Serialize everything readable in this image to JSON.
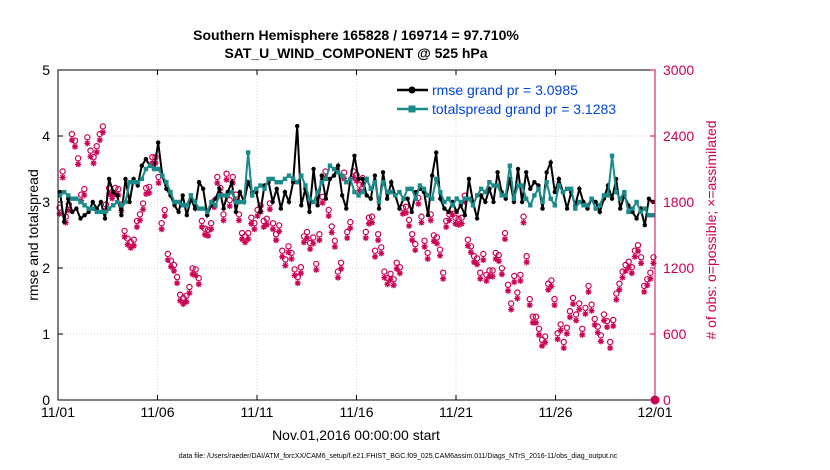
{
  "chart_data": {
    "type": "line",
    "title": "Southern Hemisphere 165828 / 169714 = 97.710%",
    "subtitle": "SAT_U_WIND_COMPONENT @ 525 hPa",
    "xlabel": "Nov.01,2016 00:00:00 start",
    "ylabel": "rmse and totalspread",
    "ylabel_right": "# of obs: o=possible; ×=assimilated",
    "xlim": [
      0,
      30
    ],
    "ylim": [
      0,
      5
    ],
    "ylim_right": [
      0,
      3000
    ],
    "x_tick_labels": [
      "11/01",
      "11/06",
      "11/11",
      "11/16",
      "11/21",
      "11/26",
      "12/01"
    ],
    "x_tick_values": [
      0,
      5,
      10,
      15,
      20,
      25,
      30
    ],
    "y_tick_labels": [
      "0",
      "1",
      "2",
      "3",
      "4",
      "5"
    ],
    "y_right_tick_labels": [
      "0",
      "600",
      "1200",
      "1800",
      "2400",
      "3000"
    ],
    "grid": true,
    "legend_position": "top-right",
    "legend": [
      "rmse grand pr = 3.0985",
      "totalspread grand pr = 3.1283"
    ],
    "footer": "data file: /Users/raeder/DAI/ATM_forcXX/CAM6_setup/f.e21.FHIST_BGC.f09_025.CAM6assim.011/Diags_NTrS_2016-11/obs_diag_output.nc",
    "series": [
      {
        "name": "rmse",
        "color": "#000000",
        "values": [
          3.15,
          2.7,
          3.05,
          2.85,
          2.9,
          2.75,
          2.8,
          2.85,
          3.0,
          2.9,
          3.0,
          2.75,
          3.35,
          3.15,
          3.1,
          2.8,
          3.35,
          3.0,
          3.35,
          3.25,
          3.55,
          3.65,
          3.55,
          3.5,
          3.9,
          3.4,
          3.2,
          3.1,
          2.95,
          2.85,
          3.1,
          2.8,
          3.05,
          2.9,
          3.3,
          3.2,
          2.8,
          2.95,
          3.05,
          3.2,
          2.9,
          3.15,
          3.3,
          2.85,
          3.15,
          3.0,
          3.3,
          3.15,
          3.15,
          2.85,
          3.25,
          3.3,
          3.0,
          3.2,
          2.9,
          3.15,
          3.0,
          3.3,
          4.15,
          2.95,
          3.2,
          2.85,
          3.5,
          2.95,
          3.4,
          3.05,
          3.35,
          3.4,
          3.55,
          3.1,
          2.9,
          3.35,
          3.7,
          3.35,
          3.35,
          3.1,
          3.05,
          3.4,
          2.9,
          3.45,
          3.05,
          3.3,
          3.1,
          2.9,
          3.05,
          3.05,
          2.85,
          3.15,
          3.2,
          3.15,
          2.8,
          3.4,
          3.75,
          3.05,
          2.9,
          2.85,
          3.0,
          2.85,
          2.95,
          2.8,
          3.35,
          3.0,
          2.75,
          3.1,
          3.0,
          3.2,
          3.0,
          3.45,
          3.15,
          3.05,
          3.35,
          3.0,
          3.5,
          3.0,
          3.45,
          3.2,
          3.3,
          3.25,
          2.9,
          3.45,
          3.6,
          3.15,
          3.35,
          3.15,
          2.9,
          3.15,
          2.95,
          3.2,
          3.0,
          2.9,
          3.05,
          3.0,
          2.85,
          3.05,
          3.25,
          3.05,
          3.35,
          2.9,
          3.1,
          2.95,
          2.85,
          2.75,
          2.9,
          2.65,
          3.05,
          3.0
        ]
      },
      {
        "name": "totalspread",
        "color": "#1a8a8a",
        "values": [
          3.1,
          3.15,
          3.1,
          3.05,
          3.05,
          3.0,
          2.95,
          2.9,
          2.9,
          2.85,
          2.85,
          2.85,
          2.9,
          2.95,
          3.0,
          2.95,
          3.0,
          3.3,
          3.3,
          3.3,
          3.35,
          3.5,
          3.55,
          3.5,
          3.5,
          3.4,
          3.3,
          3.15,
          3.0,
          3.0,
          2.95,
          2.95,
          3.1,
          3.0,
          2.9,
          2.9,
          2.85,
          3.0,
          2.95,
          3.1,
          3.1,
          3.1,
          3.15,
          3.0,
          3.0,
          3.0,
          3.75,
          3.1,
          3.2,
          3.25,
          3.2,
          3.35,
          3.35,
          3.3,
          3.3,
          3.35,
          3.4,
          3.35,
          3.3,
          3.4,
          3.25,
          3.05,
          3.0,
          3.15,
          3.3,
          3.35,
          3.55,
          3.5,
          3.45,
          3.4,
          3.3,
          3.35,
          3.15,
          3.1,
          3.15,
          3.35,
          3.2,
          3.3,
          3.0,
          3.3,
          3.15,
          3.15,
          3.1,
          3.15,
          3.05,
          3.2,
          3.2,
          3.05,
          3.25,
          3.2,
          3.1,
          3.05,
          3.35,
          3.15,
          3.0,
          3.05,
          2.95,
          3.05,
          3.0,
          3.05,
          3.05,
          2.95,
          3.1,
          3.2,
          3.15,
          3.3,
          3.25,
          3.25,
          3.1,
          3.1,
          3.55,
          3.05,
          3.25,
          3.25,
          3.05,
          2.95,
          3.1,
          3.2,
          3.0,
          3.3,
          3.05,
          2.95,
          3.25,
          3.15,
          3.2,
          3.2,
          2.9,
          3.0,
          2.95,
          2.95,
          3.05,
          2.9,
          2.95,
          3.1,
          3.1,
          3.7,
          3.15,
          3.05,
          3.15,
          2.85,
          2.9,
          3.0,
          2.85,
          2.9,
          2.8,
          2.8
        ]
      }
    ],
    "obs_possible": [
      1720,
      2050,
      1640,
      1750,
      2390,
      2330,
      2170,
      1840,
      1890,
      2360,
      2240,
      2180,
      2280,
      2390,
      2460,
      1750,
      1900,
      1860,
      1900,
      1890,
      1750,
      1510,
      1440,
      1410,
      1430,
      1600,
      1660,
      1760,
      1900,
      1910,
      2180,
      2180,
      2000,
      1580,
      1700,
      1300,
      1240,
      1200,
      1090,
      930,
      900,
      920,
      1000,
      1170,
      1160,
      1080,
      1600,
      1530,
      1520,
      1580,
      1780,
      2000,
      1900,
      1660,
      2030,
      1790,
      2000,
      1840,
      1660,
      1490,
      1460,
      1490,
      1630,
      1580,
      1700,
      1740,
      1600,
      1620,
      1760,
      1580,
      1480,
      1560,
      1330,
      1250,
      1370,
      1310,
      1160,
      1090,
      1180,
      1460,
      1500,
      1400,
      1450,
      1210,
      1480,
      1820,
      2050,
      1700,
      1550,
      1420,
      1140,
      1220,
      2040,
      1500,
      1590,
      2050,
      2020,
      1930,
      1990,
      1500,
      1630,
      1640,
      1330,
      1480,
      1360,
      1140,
      1080,
      1120,
      1070,
      1220,
      1180,
      1720,
      1730,
      1610,
      1480,
      1390,
      1810,
      1640,
      1420,
      1310,
      1660,
      1470,
      1450,
      1340,
      1130,
      1600,
      1660,
      1710,
      1630,
      1620,
      1630,
      1830,
      1430,
      1370,
      1280,
      1260,
      1130,
      1300,
      1110,
      1150,
      1150,
      1310,
      1290,
      1170,
      1490,
      1020,
      850,
      1100,
      950,
      1110,
      1640,
      1280,
      890,
      730,
      730,
      620,
      520,
      550,
      1030,
      1060,
      890,
      580,
      660,
      500,
      630,
      780,
      900,
      750,
      850,
      620,
      810,
      1010,
      840,
      710,
      640,
      560,
      750,
      690,
      500,
      700,
      940,
      1030,
      1140,
      1200,
      1230,
      1180,
      1330,
      1380,
      1270,
      1010,
      1070,
      1130,
      1270
    ]
  }
}
